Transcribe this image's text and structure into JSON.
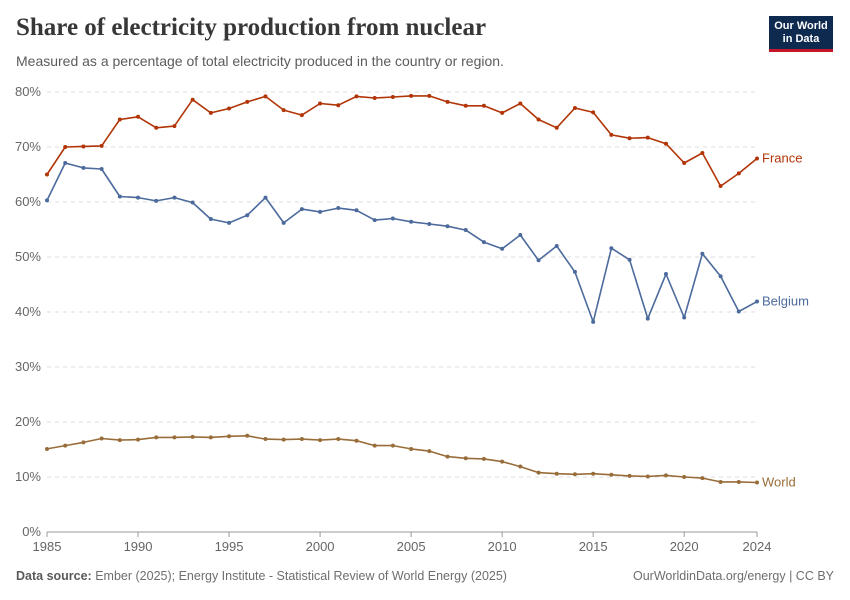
{
  "header": {
    "title": "Share of electricity production from nuclear",
    "subtitle": "Measured as a percentage of total electricity produced in the country or region."
  },
  "logo": {
    "line1": "Our World",
    "line2": "in Data"
  },
  "footer": {
    "source_label": "Data source:",
    "source_text": "Ember (2025); Energy Institute - Statistical Review of World Energy (2025)",
    "right_text": "OurWorldinData.org/energy | CC BY"
  },
  "chart_data": {
    "type": "line",
    "title": "Share of electricity production from nuclear",
    "xlim": [
      1985,
      2024
    ],
    "ylim": [
      0,
      80
    ],
    "x_ticks": [
      1985,
      1990,
      1995,
      2000,
      2005,
      2010,
      2015,
      2020,
      2024
    ],
    "y_ticks": [
      0,
      10,
      20,
      30,
      40,
      50,
      60,
      70,
      80
    ],
    "y_tick_labels": [
      "0%",
      "10%",
      "20%",
      "30%",
      "40%",
      "50%",
      "60%",
      "70%",
      "80%"
    ],
    "grid": "horizontal dashed",
    "legend": "inline labels at right end of lines",
    "x": [
      1985,
      1986,
      1987,
      1988,
      1989,
      1990,
      1991,
      1992,
      1993,
      1994,
      1995,
      1996,
      1997,
      1998,
      1999,
      2000,
      2001,
      2002,
      2003,
      2004,
      2005,
      2006,
      2007,
      2008,
      2009,
      2010,
      2011,
      2012,
      2013,
      2014,
      2015,
      2016,
      2017,
      2018,
      2019,
      2020,
      2021,
      2022,
      2023,
      2024
    ],
    "series": [
      {
        "name": "France",
        "color": "#b13507",
        "values": [
          65.0,
          70.0,
          70.1,
          70.2,
          75.0,
          75.5,
          73.5,
          73.8,
          78.6,
          76.2,
          77.0,
          78.2,
          79.2,
          76.7,
          75.8,
          77.9,
          77.6,
          79.2,
          78.9,
          79.1,
          79.3,
          79.3,
          78.2,
          77.5,
          77.5,
          76.2,
          77.9,
          75.0,
          73.5,
          77.1,
          76.3,
          72.2,
          71.6,
          71.7,
          70.6,
          67.1,
          68.9,
          62.9,
          65.2,
          67.9
        ]
      },
      {
        "name": "Belgium",
        "color": "#4c6a9c",
        "values": [
          60.3,
          67.1,
          66.2,
          66.0,
          61.0,
          60.8,
          60.2,
          60.8,
          59.9,
          56.9,
          56.2,
          57.6,
          60.8,
          56.2,
          58.7,
          58.2,
          58.9,
          58.5,
          56.7,
          57.0,
          56.4,
          56.0,
          55.6,
          54.9,
          52.7,
          51.5,
          54.0,
          49.4,
          52.0,
          47.3,
          38.2,
          51.6,
          49.5,
          38.8,
          46.9,
          39.0,
          50.6,
          46.5,
          40.1,
          41.9
        ]
      },
      {
        "name": "World",
        "color": "#986d39",
        "values": [
          15.1,
          15.7,
          16.3,
          17.0,
          16.7,
          16.8,
          17.2,
          17.2,
          17.3,
          17.2,
          17.4,
          17.5,
          16.9,
          16.8,
          16.9,
          16.7,
          16.9,
          16.6,
          15.7,
          15.7,
          15.1,
          14.7,
          13.7,
          13.4,
          13.3,
          12.8,
          11.9,
          10.8,
          10.6,
          10.5,
          10.6,
          10.4,
          10.2,
          10.1,
          10.3,
          10.0,
          9.8,
          9.1,
          9.1,
          9.0
        ]
      }
    ]
  }
}
